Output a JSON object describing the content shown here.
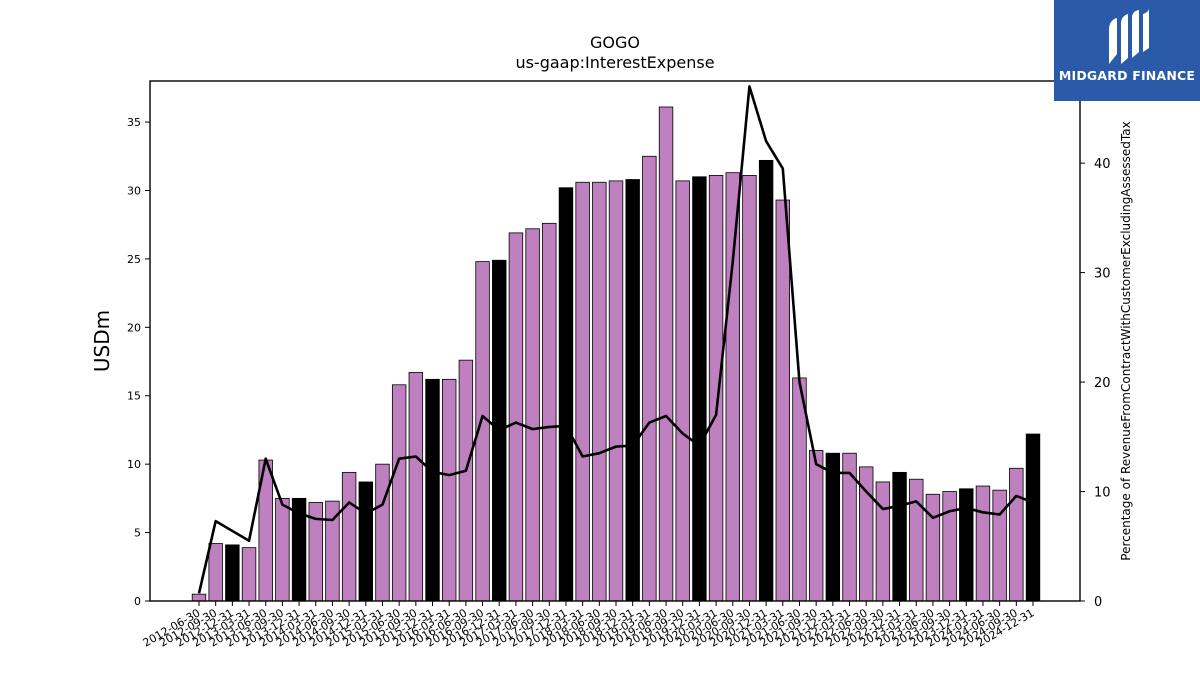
{
  "chart_data": {
    "type": "bar",
    "title": "GOGO",
    "subtitle": "us-gaap:InterestExpense",
    "ylabel": "USDm",
    "y2label": "Percentage of RevenueFromContractWithCustomerExcludingAssessedTax",
    "ylim": [
      0,
      38
    ],
    "y2lim": [
      0,
      47.5
    ],
    "yticks": [
      0,
      5,
      10,
      15,
      20,
      25,
      30,
      35
    ],
    "y2ticks": [
      0,
      10,
      20,
      30,
      40
    ],
    "grid": false,
    "colors": {
      "bar": "#bf80bf",
      "bar_highlight": "#000000",
      "line": "#000000"
    },
    "categories": [
      "2012-06-30",
      "2012-09-30",
      "2012-12-31",
      "2013-03-31",
      "2013-06-30",
      "2013-09-30",
      "2013-12-31",
      "2014-03-31",
      "2014-06-30",
      "2014-09-30",
      "2014-12-31",
      "2015-03-31",
      "2015-06-30",
      "2015-09-30",
      "2015-12-31",
      "2016-03-31",
      "2016-06-30",
      "2016-09-30",
      "2016-12-31",
      "2017-03-31",
      "2017-06-30",
      "2017-09-30",
      "2017-12-31",
      "2018-03-31",
      "2018-06-30",
      "2018-09-30",
      "2018-12-31",
      "2019-03-31",
      "2019-06-30",
      "2019-09-30",
      "2019-12-31",
      "2020-03-31",
      "2020-06-30",
      "2020-09-30",
      "2020-12-31",
      "2021-03-31",
      "2021-06-30",
      "2021-09-30",
      "2021-12-31",
      "2022-03-31",
      "2022-06-30",
      "2022-09-30",
      "2022-12-31",
      "2023-03-31",
      "2023-06-30",
      "2023-09-30",
      "2023-12-31",
      "2024-03-31",
      "2024-06-30",
      "2024-09-30",
      "2024-12-31"
    ],
    "series": [
      {
        "type": "bar",
        "axis": "left",
        "values": [
          0.5,
          4.2,
          4.1,
          3.9,
          10.3,
          7.5,
          7.5,
          7.2,
          7.3,
          9.4,
          8.7,
          10.0,
          15.8,
          16.7,
          16.2,
          16.2,
          17.6,
          24.8,
          24.9,
          26.9,
          27.2,
          27.6,
          30.2,
          30.6,
          30.6,
          30.7,
          30.8,
          32.5,
          36.1,
          30.7,
          31.0,
          31.1,
          31.3,
          31.1,
          32.2,
          29.3,
          16.3,
          11.0,
          10.8,
          10.8,
          9.8,
          8.7,
          9.4,
          8.9,
          7.8,
          8.0,
          8.2,
          8.4,
          8.1,
          9.7,
          12.2
        ],
        "highlight": [
          false,
          false,
          true,
          false,
          false,
          false,
          true,
          false,
          false,
          false,
          true,
          false,
          false,
          false,
          true,
          false,
          false,
          false,
          true,
          false,
          false,
          false,
          true,
          false,
          false,
          false,
          true,
          false,
          false,
          false,
          true,
          false,
          false,
          false,
          true,
          false,
          false,
          false,
          true,
          false,
          false,
          false,
          true,
          false,
          false,
          false,
          true,
          false,
          false,
          false,
          true
        ]
      },
      {
        "type": "line",
        "axis": "right",
        "values": [
          0.7,
          7.3,
          6.4,
          5.5,
          13.0,
          8.8,
          8.0,
          7.5,
          7.4,
          9.0,
          8.0,
          8.8,
          13.0,
          13.2,
          11.8,
          11.5,
          11.9,
          16.9,
          15.6,
          16.3,
          15.7,
          15.9,
          16.0,
          13.2,
          13.5,
          14.1,
          14.2,
          16.3,
          16.9,
          15.3,
          14.2,
          17.0,
          31.0,
          47.0,
          42.0,
          39.5,
          20.0,
          12.5,
          11.7,
          11.7,
          10.0,
          8.4,
          8.7,
          9.1,
          7.6,
          8.2,
          8.5,
          8.1,
          7.9,
          9.6,
          9.0
        ]
      }
    ]
  },
  "logo": {
    "text": "MIDGARD FINANCE",
    "icon": "midgard-logo-icon",
    "bg": "#2b5aa8"
  }
}
